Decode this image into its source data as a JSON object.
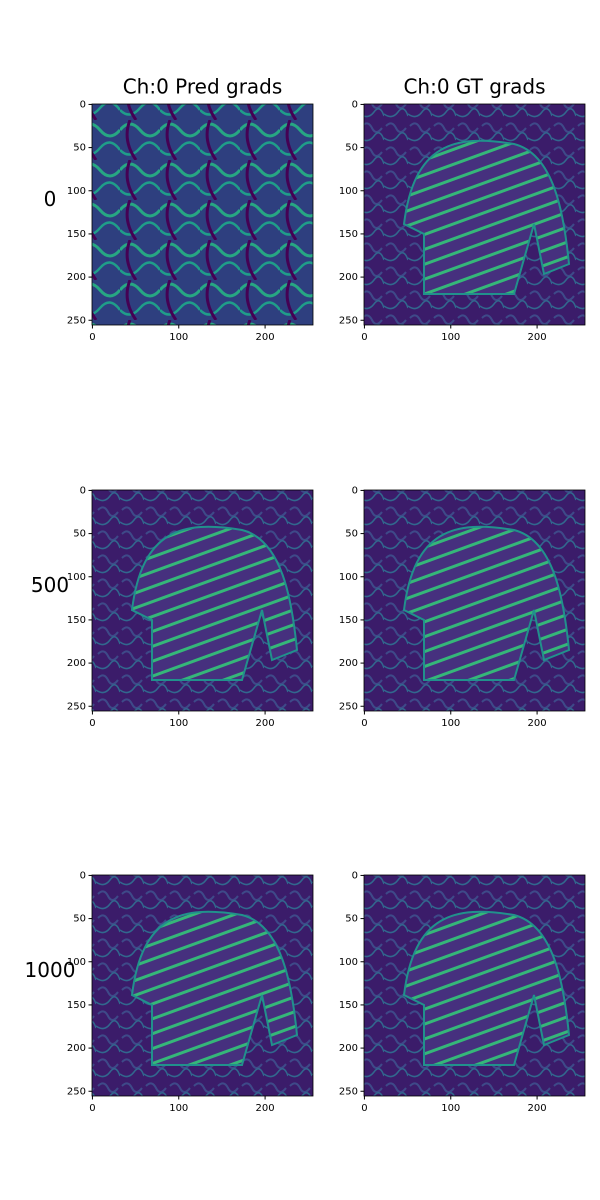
{
  "chart_data": [
    {
      "type": "image",
      "title": "Ch:0 Pred grads",
      "ylabel": "0",
      "xlim": [
        -0.5,
        255.5
      ],
      "ylim": [
        255.5,
        -0.5
      ],
      "xticks": [
        0,
        100,
        200
      ],
      "yticks": [
        0,
        50,
        100,
        150,
        200,
        250
      ]
    },
    {
      "type": "image",
      "title": "Ch:0 GT grads",
      "xlim": [
        -0.5,
        255.5
      ],
      "ylim": [
        255.5,
        -0.5
      ],
      "xticks": [
        0,
        100,
        200
      ],
      "yticks": [
        0,
        50,
        100,
        150,
        200,
        250
      ]
    },
    {
      "type": "image",
      "ylabel": "500",
      "xlim": [
        -0.5,
        255.5
      ],
      "ylim": [
        255.5,
        -0.5
      ],
      "xticks": [
        0,
        100,
        200
      ],
      "yticks": [
        0,
        50,
        100,
        150,
        200,
        250
      ]
    },
    {
      "type": "image",
      "xlim": [
        -0.5,
        255.5
      ],
      "ylim": [
        255.5,
        -0.5
      ],
      "xticks": [
        0,
        100,
        200
      ],
      "yticks": [
        0,
        50,
        100,
        150,
        200,
        250
      ]
    },
    {
      "type": "image",
      "ylabel": "1000",
      "xlim": [
        -0.5,
        255.5
      ],
      "ylim": [
        255.5,
        -0.5
      ],
      "xticks": [
        0,
        100,
        200
      ],
      "yticks": [
        0,
        50,
        100,
        150,
        200,
        250
      ]
    },
    {
      "type": "image",
      "xlim": [
        -0.5,
        255.5
      ],
      "ylim": [
        255.5,
        -0.5
      ],
      "xticks": [
        0,
        100,
        200
      ],
      "yticks": [
        0,
        50,
        100,
        150,
        200,
        250
      ]
    }
  ]
}
